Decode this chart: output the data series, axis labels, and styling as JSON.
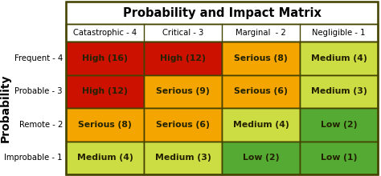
{
  "title": "Probability and Impact Matrix",
  "col_headers": [
    "Catastrophic - 4",
    "Critical - 3",
    "Marginal  - 2",
    "Negligible - 1"
  ],
  "row_headers": [
    "Frequent - 4",
    "Probable - 3",
    "Remote - 2",
    "Improbable - 1"
  ],
  "cells": [
    [
      "High (16)",
      "High (12)",
      "Serious (8)",
      "Medium (4)"
    ],
    [
      "High (12)",
      "Serious (9)",
      "Serious (6)",
      "Medium (3)"
    ],
    [
      "Serious (8)",
      "Serious (6)",
      "Medium (4)",
      "Low (2)"
    ],
    [
      "Medium (4)",
      "Medium (3)",
      "Low (2)",
      "Low (1)"
    ]
  ],
  "cell_colors": [
    [
      "#cc1100",
      "#cc1100",
      "#f5a500",
      "#ccdd44"
    ],
    [
      "#cc1100",
      "#f5a500",
      "#f5a500",
      "#ccdd44"
    ],
    [
      "#f5a500",
      "#f5a500",
      "#ccdd44",
      "#55aa33"
    ],
    [
      "#ccdd44",
      "#ccdd44",
      "#55aa33",
      "#55aa33"
    ]
  ],
  "border_color": "#444400",
  "ylabel": "Probability",
  "title_fontsize": 10.5,
  "header_fontsize": 7.2,
  "cell_fontsize": 7.8,
  "row_header_fontsize": 7.2,
  "ylabel_fontsize": 10
}
